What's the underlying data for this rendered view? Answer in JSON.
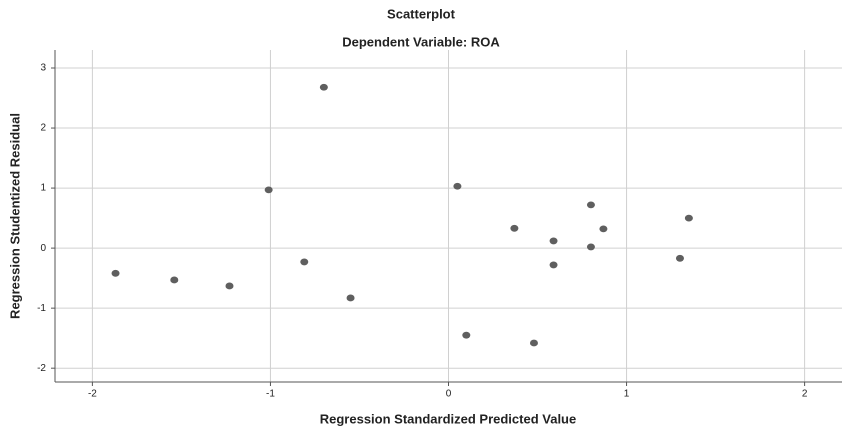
{
  "chart_data": {
    "type": "scatter",
    "title": "Scatterplot",
    "subtitle": "Dependent Variable: ROA",
    "x_label": "Regression Standardized Predicted Value",
    "y_label": "Regression Studentized Residual",
    "x": [
      -1.87,
      -1.54,
      -1.23,
      -1.01,
      -0.81,
      -0.7,
      -0.55,
      0.05,
      0.1,
      0.37,
      0.48,
      0.59,
      0.59,
      0.8,
      0.8,
      0.87,
      1.3,
      1.35
    ],
    "y": [
      -0.42,
      -0.53,
      -0.63,
      0.97,
      -0.23,
      2.68,
      -0.83,
      1.03,
      -1.45,
      0.33,
      -1.58,
      0.12,
      -0.28,
      0.72,
      0.02,
      0.32,
      -0.17,
      0.5
    ],
    "color": "#5f5f5f",
    "xlim": [
      -2.21,
      2.21
    ],
    "ylim": [
      -2.23,
      3.3
    ],
    "xticks": [
      -2,
      -1,
      0,
      1,
      2
    ],
    "yticks": [
      -2,
      -1,
      0,
      1,
      2,
      3
    ],
    "grid": true
  }
}
